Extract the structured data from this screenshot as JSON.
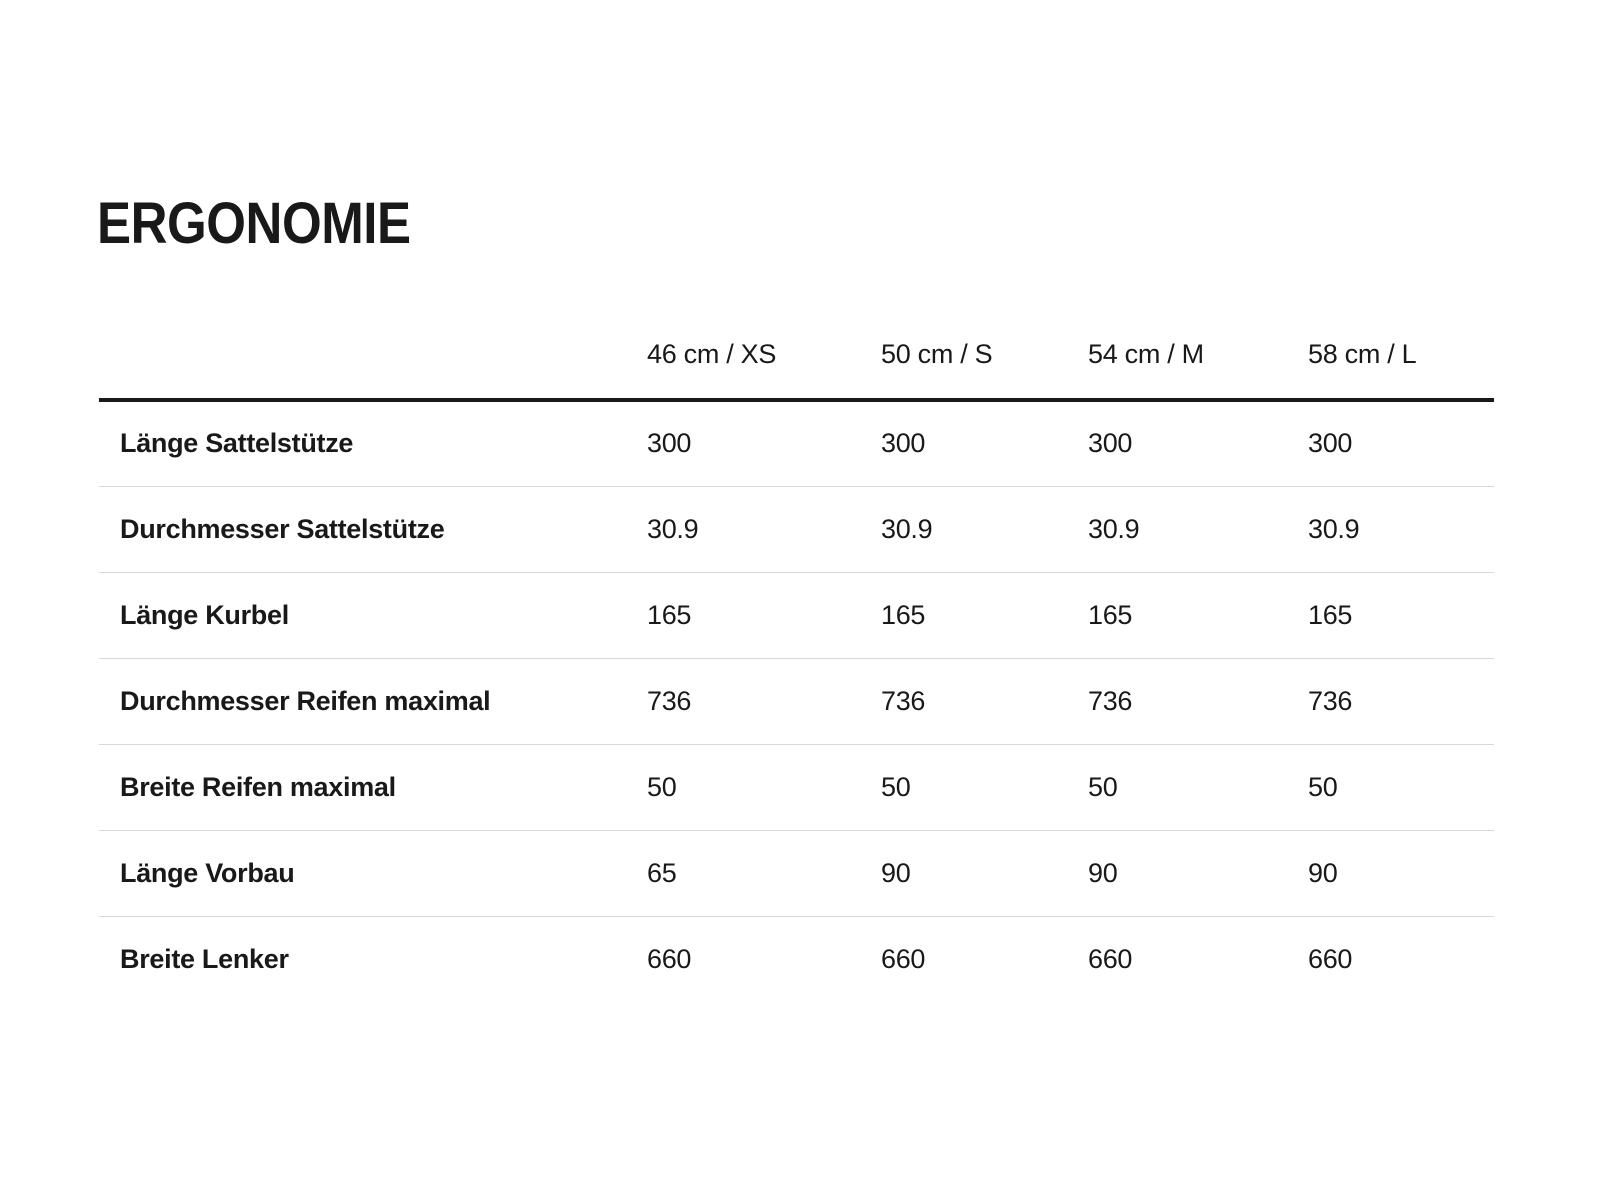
{
  "page": {
    "title": "ERGONOMIE",
    "background_color": "#ffffff",
    "text_color": "#191919",
    "header_rule_color": "#191919",
    "row_rule_color": "#d9d9d9"
  },
  "table": {
    "columns": [
      "46 cm / XS",
      "50 cm / S",
      "54 cm / M",
      "58 cm / L"
    ],
    "rows": [
      {
        "label": "Länge Sattelstütze",
        "values": [
          "300",
          "300",
          "300",
          "300"
        ]
      },
      {
        "label": "Durchmesser Sattelstütze",
        "values": [
          "30.9",
          "30.9",
          "30.9",
          "30.9"
        ]
      },
      {
        "label": "Länge Kurbel",
        "values": [
          "165",
          "165",
          "165",
          "165"
        ]
      },
      {
        "label": "Durchmesser Reifen maximal",
        "values": [
          "736",
          "736",
          "736",
          "736"
        ]
      },
      {
        "label": "Breite Reifen maximal",
        "values": [
          "50",
          "50",
          "50",
          "50"
        ]
      },
      {
        "label": "Länge Vorbau",
        "values": [
          "65",
          "90",
          "90",
          "90"
        ]
      },
      {
        "label": "Breite Lenker",
        "values": [
          "660",
          "660",
          "660",
          "660"
        ]
      }
    ]
  }
}
